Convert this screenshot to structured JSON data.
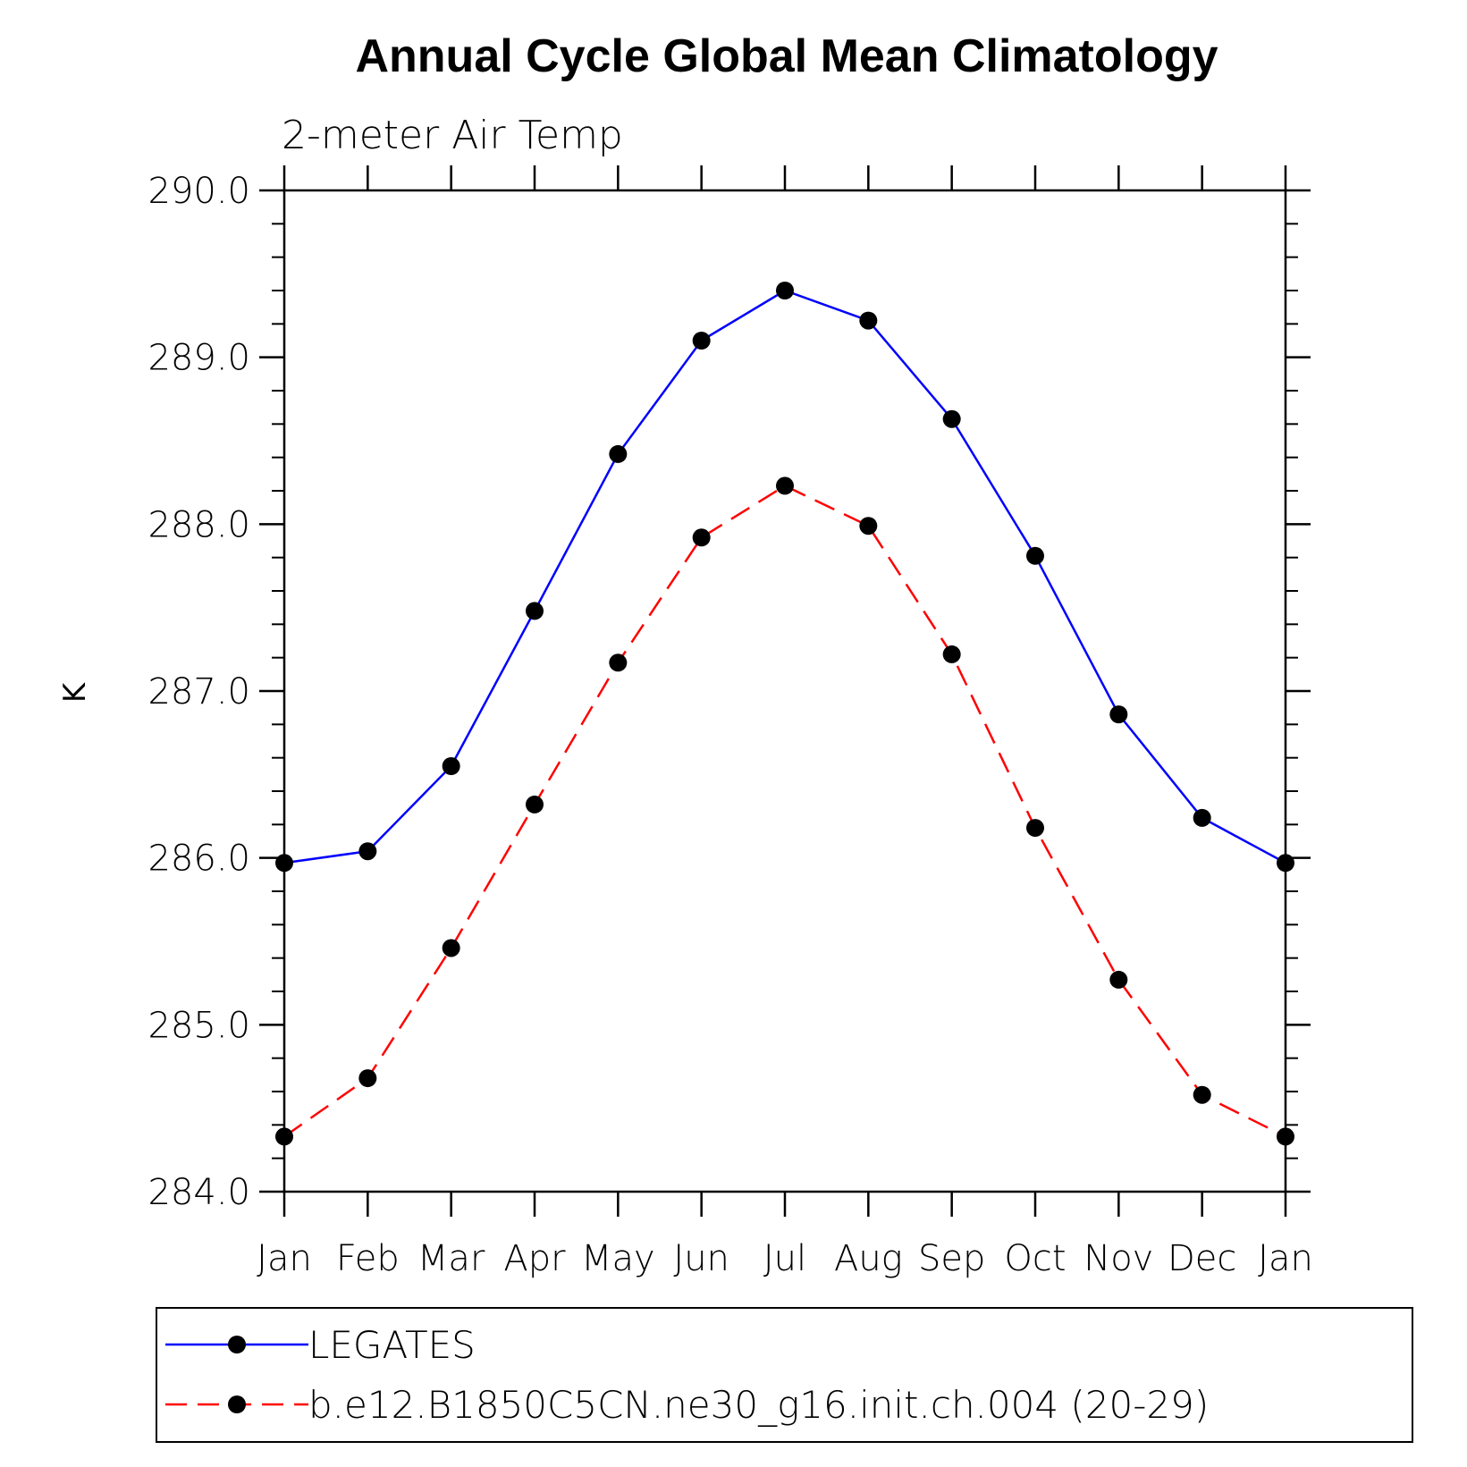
{
  "chart_data": {
    "type": "line",
    "title": "Annual Cycle Global Mean Climatology",
    "subtitle": "2-meter Air Temp",
    "ylabel": "K",
    "xlabel": "",
    "ylim": [
      284.0,
      290.0
    ],
    "yticks": [
      "284.0",
      "285.0",
      "286.0",
      "287.0",
      "288.0",
      "289.0",
      "290.0"
    ],
    "categories": [
      "Jan",
      "Feb",
      "Mar",
      "Apr",
      "May",
      "Jun",
      "Jul",
      "Aug",
      "Sep",
      "Oct",
      "Nov",
      "Dec",
      "Jan"
    ],
    "series": [
      {
        "name": "LEGATES",
        "color": "#0000ff",
        "dash": "solid",
        "values": [
          285.97,
          286.04,
          286.55,
          287.48,
          288.42,
          289.1,
          289.4,
          289.22,
          288.63,
          287.81,
          286.86,
          286.24,
          285.97
        ]
      },
      {
        "name": "b.e12.B1850C5CN.ne30_g16.init.ch.004 (20-29)",
        "color": "#ff0000",
        "dash": "dashed",
        "values": [
          284.33,
          284.68,
          285.46,
          286.32,
          287.17,
          287.92,
          288.23,
          287.99,
          287.22,
          286.18,
          285.27,
          284.58,
          284.33
        ]
      }
    ],
    "legend_position": "bottom"
  }
}
